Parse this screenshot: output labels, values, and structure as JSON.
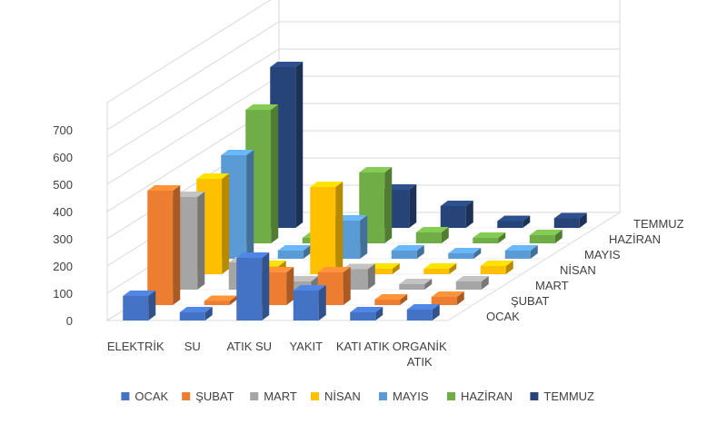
{
  "chart_data": {
    "type": "bar",
    "subtype": "3d-clustered-column",
    "title": "",
    "xlabel": "",
    "ylabel": "",
    "ylim": [
      0,
      700
    ],
    "yticks": [
      0,
      100,
      200,
      300,
      400,
      500,
      600,
      700
    ],
    "grid": true,
    "legend_position": "bottom",
    "categories": [
      "ELEKTRİK",
      "SU",
      "ATIK SU",
      "YAKIT",
      "KATI ATIK",
      "ORGANİK ATIK"
    ],
    "category_label_lines": [
      [
        "ELEKTRİK"
      ],
      [
        "SU"
      ],
      [
        "ATIK SU"
      ],
      [
        "YAKIT"
      ],
      [
        "KATI ATIK"
      ],
      [
        "ORGANİK",
        "ATIK"
      ]
    ],
    "series": [
      {
        "name": "OCAK",
        "color": "#4472C4",
        "values": [
          90,
          30,
          230,
          110,
          30,
          40
        ]
      },
      {
        "name": "ŞUBAT",
        "color": "#ED7D31",
        "values": [
          420,
          15,
          120,
          120,
          20,
          30
        ]
      },
      {
        "name": "MART",
        "color": "#A5A5A5",
        "values": [
          340,
          100,
          30,
          75,
          20,
          30
        ]
      },
      {
        "name": "NİSAN",
        "color": "#FFC000",
        "values": [
          350,
          30,
          320,
          20,
          20,
          30
        ]
      },
      {
        "name": "MAYIS",
        "color": "#5B9BD5",
        "values": [
          380,
          30,
          140,
          30,
          20,
          30
        ]
      },
      {
        "name": "HAZİRAN",
        "color": "#70AD47",
        "values": [
          490,
          20,
          260,
          40,
          20,
          30
        ]
      },
      {
        "name": "TEMMUZ",
        "color": "#264478",
        "values": [
          590,
          20,
          140,
          80,
          25,
          35
        ]
      }
    ]
  }
}
